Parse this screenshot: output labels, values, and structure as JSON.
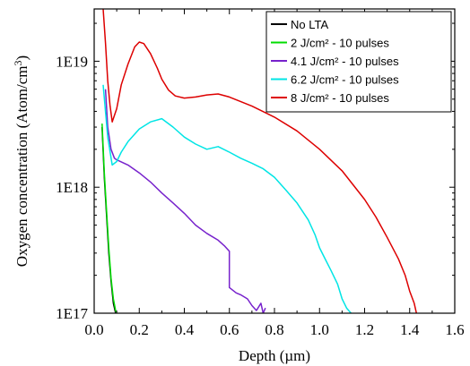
{
  "chart_data": {
    "type": "line",
    "xlabel": "Depth (µm)",
    "ylabel_main": "Oxygen concentration (Atom/cm",
    "ylabel_sup": "3",
    "ylabel_close": ")",
    "xlim": [
      0.0,
      1.6
    ],
    "ylim": [
      1e+17,
      2.6e+19
    ],
    "yscale": "log",
    "x_ticks": [
      {
        "value": 0.0,
        "label": "0.0"
      },
      {
        "value": 0.2,
        "label": "0.2"
      },
      {
        "value": 0.4,
        "label": "0.4"
      },
      {
        "value": 0.6,
        "label": "0.6"
      },
      {
        "value": 0.8,
        "label": "0.8"
      },
      {
        "value": 1.0,
        "label": "1.0"
      },
      {
        "value": 1.2,
        "label": "1.2"
      },
      {
        "value": 1.4,
        "label": "1.4"
      },
      {
        "value": 1.6,
        "label": "1.6"
      }
    ],
    "y_ticks": [
      {
        "value": 1e+17,
        "label": "1E17"
      },
      {
        "value": 1e+18,
        "label": "1E18"
      },
      {
        "value": 1e+19,
        "label": "1E19"
      }
    ],
    "legend_position": "top-right",
    "series": [
      {
        "name": "No LTA",
        "color": "#000000",
        "x": [
          0.035,
          0.045,
          0.055,
          0.065,
          0.075,
          0.085,
          0.095
        ],
        "y": [
          3e+18,
          1.2e+18,
          6e+17,
          3e+17,
          1.8e+17,
          1.2e+17,
          1e+17
        ]
      },
      {
        "name": "2 J/cm² - 10 pulses",
        "color": "#00dd00",
        "x": [
          0.035,
          0.045,
          0.055,
          0.065,
          0.075,
          0.085,
          0.095,
          0.1
        ],
        "y": [
          3.2e+18,
          1.3e+18,
          6.5e+17,
          3.3e+17,
          1.9e+17,
          1.3e+17,
          1.05e+17,
          1e+17
        ]
      },
      {
        "name": "4.1 J/cm² - 10 pulses",
        "color": "#7722cc",
        "x": [
          0.05,
          0.06,
          0.075,
          0.09,
          0.1,
          0.15,
          0.2,
          0.25,
          0.3,
          0.35,
          0.4,
          0.45,
          0.5,
          0.55,
          0.58,
          0.6,
          0.6,
          0.63,
          0.65,
          0.68,
          0.7,
          0.72,
          0.74,
          0.75,
          0.76
        ],
        "y": [
          6e+18,
          3e+18,
          2e+18,
          1.7e+18,
          1.65e+18,
          1.5e+18,
          1.3e+18,
          1.1e+18,
          9e+17,
          7.5e+17,
          6.2e+17,
          5e+17,
          4.3e+17,
          3.8e+17,
          3.4e+17,
          3.1e+17,
          1.6e+17,
          1.45e+17,
          1.4e+17,
          1.3e+17,
          1.15e+17,
          1.05e+17,
          1.2e+17,
          1e+17,
          1.1e+17
        ]
      },
      {
        "name": "6.2 J/cm² - 10 pulses",
        "color": "#00e5e5",
        "x": [
          0.04,
          0.06,
          0.08,
          0.1,
          0.12,
          0.15,
          0.2,
          0.25,
          0.3,
          0.35,
          0.4,
          0.45,
          0.5,
          0.55,
          0.6,
          0.65,
          0.7,
          0.75,
          0.8,
          0.85,
          0.9,
          0.95,
          0.98,
          1.0,
          1.02,
          1.05,
          1.08,
          1.1,
          1.12,
          1.14
        ],
        "y": [
          6.5e+18,
          2.5e+18,
          1.5e+18,
          1.6e+18,
          1.9e+18,
          2.3e+18,
          2.9e+18,
          3.3e+18,
          3.5e+18,
          3e+18,
          2.5e+18,
          2.2e+18,
          2e+18,
          2.1e+18,
          1.9e+18,
          1.7e+18,
          1.55e+18,
          1.4e+18,
          1.2e+18,
          9.5e+17,
          7.5e+17,
          5.5e+17,
          4.2e+17,
          3.3e+17,
          2.8e+17,
          2.2e+17,
          1.7e+17,
          1.3e+17,
          1.1e+17,
          1e+17
        ]
      },
      {
        "name": "8 J/cm² - 10 pulses",
        "color": "#dd0000",
        "x": [
          0.04,
          0.05,
          0.06,
          0.07,
          0.08,
          0.1,
          0.12,
          0.15,
          0.18,
          0.2,
          0.22,
          0.25,
          0.28,
          0.3,
          0.33,
          0.36,
          0.4,
          0.45,
          0.5,
          0.55,
          0.6,
          0.7,
          0.8,
          0.9,
          1.0,
          1.1,
          1.2,
          1.25,
          1.3,
          1.35,
          1.38,
          1.4,
          1.42,
          1.43
        ],
        "y": [
          2.6e+19,
          1.4e+19,
          7e+18,
          4.5e+18,
          3.3e+18,
          4.2e+18,
          6.5e+18,
          9.5e+18,
          1.3e+19,
          1.42e+19,
          1.38e+19,
          1.15e+19,
          8.8e+18,
          7.2e+18,
          5.9e+18,
          5.3e+18,
          5.1e+18,
          5.2e+18,
          5.4e+18,
          5.5e+18,
          5.2e+18,
          4.4e+18,
          3.6e+18,
          2.8e+18,
          2e+18,
          1.35e+18,
          8e+17,
          5.8e+17,
          4e+17,
          2.7e+17,
          2e+17,
          1.5e+17,
          1.2e+17,
          1e+17
        ]
      }
    ]
  }
}
